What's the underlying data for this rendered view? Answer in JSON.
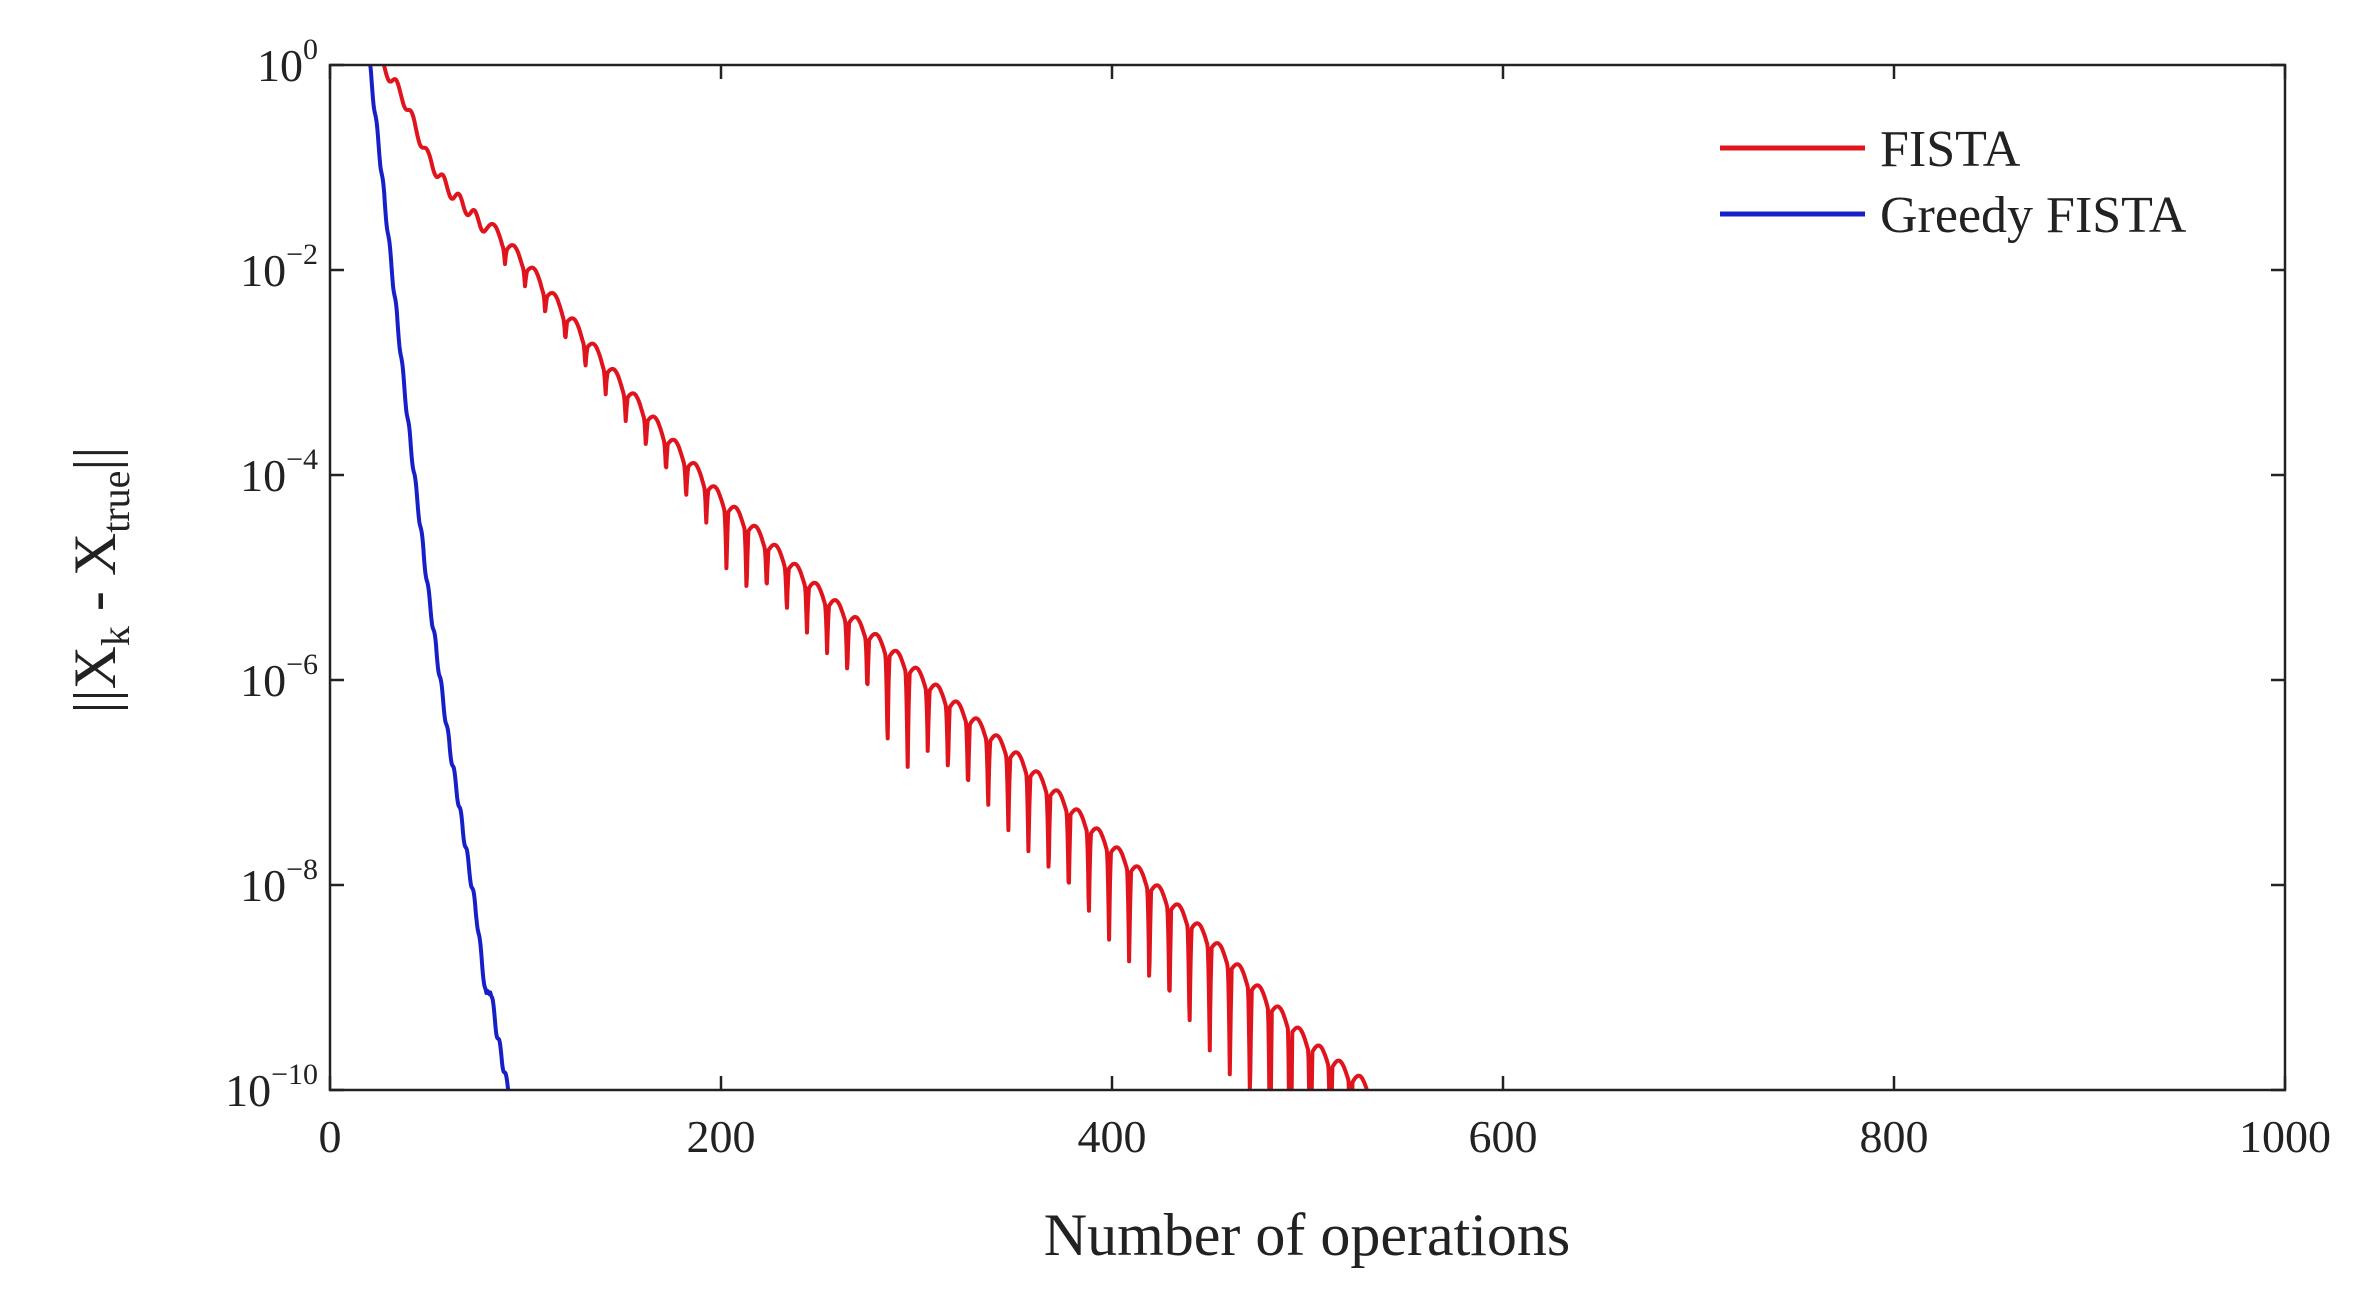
{
  "chart_data": {
    "type": "line",
    "xlabel": "Number of operations",
    "ylabel": {
      "norm_bars": "||",
      "main": "X",
      "k_sub": "k",
      "minus": " - X",
      "true_sub": "true"
    },
    "x_scale": "linear",
    "y_scale": "log",
    "xlim": [
      0,
      1000
    ],
    "ylim": [
      1e-10,
      1
    ],
    "x_ticks": [
      0,
      200,
      400,
      600,
      800,
      1000
    ],
    "x_tick_labels": [
      "0",
      "200",
      "400",
      "600",
      "800",
      "1000"
    ],
    "y_ticks": [
      1e-10,
      1e-08,
      1e-06,
      0.0001,
      0.01,
      1
    ],
    "y_tick_labels": [
      {
        "base": "10",
        "exp": "−10"
      },
      {
        "base": "10",
        "exp": "−8"
      },
      {
        "base": "10",
        "exp": "−6"
      },
      {
        "base": "10",
        "exp": "−4"
      },
      {
        "base": "10",
        "exp": "−2"
      },
      {
        "base": "10",
        "exp": "0"
      }
    ],
    "grid": false,
    "legend_position": "top-right",
    "series": [
      {
        "name": "FISTA",
        "color": "#e0141c",
        "envelope": {
          "x": [
            27,
            37,
            50,
            60,
            75,
            100,
            150,
            200,
            250,
            300,
            350,
            400,
            450,
            500,
            535
          ],
          "log10_y": [
            0,
            -0.3,
            -0.9,
            -1.2,
            -1.5,
            -2.0,
            -3.2,
            -4.3,
            -5.2,
            -6.0,
            -6.8,
            -7.7,
            -8.6,
            -9.6,
            -10.1
          ]
        },
        "oscillation": {
          "start_x": 80,
          "period": 10.3,
          "depth": [
            0.15,
            2.3
          ],
          "deep_dips_x": [
            208,
            290,
            487,
            498
          ]
        }
      },
      {
        "name": "Greedy FISTA",
        "color": "#1720c8",
        "x": [
          20,
          25,
          30,
          35,
          40,
          45,
          50,
          55,
          60,
          65,
          70,
          75,
          78,
          80,
          82,
          85,
          88,
          90,
          92
        ],
        "log10_y": [
          0.05,
          -0.8,
          -1.7,
          -2.6,
          -3.5,
          -4.3,
          -5.1,
          -5.8,
          -6.5,
          -7.1,
          -7.7,
          -8.3,
          -8.8,
          -9.1,
          -9.0,
          -9.4,
          -9.7,
          -9.9,
          -10.05
        ]
      }
    ]
  }
}
